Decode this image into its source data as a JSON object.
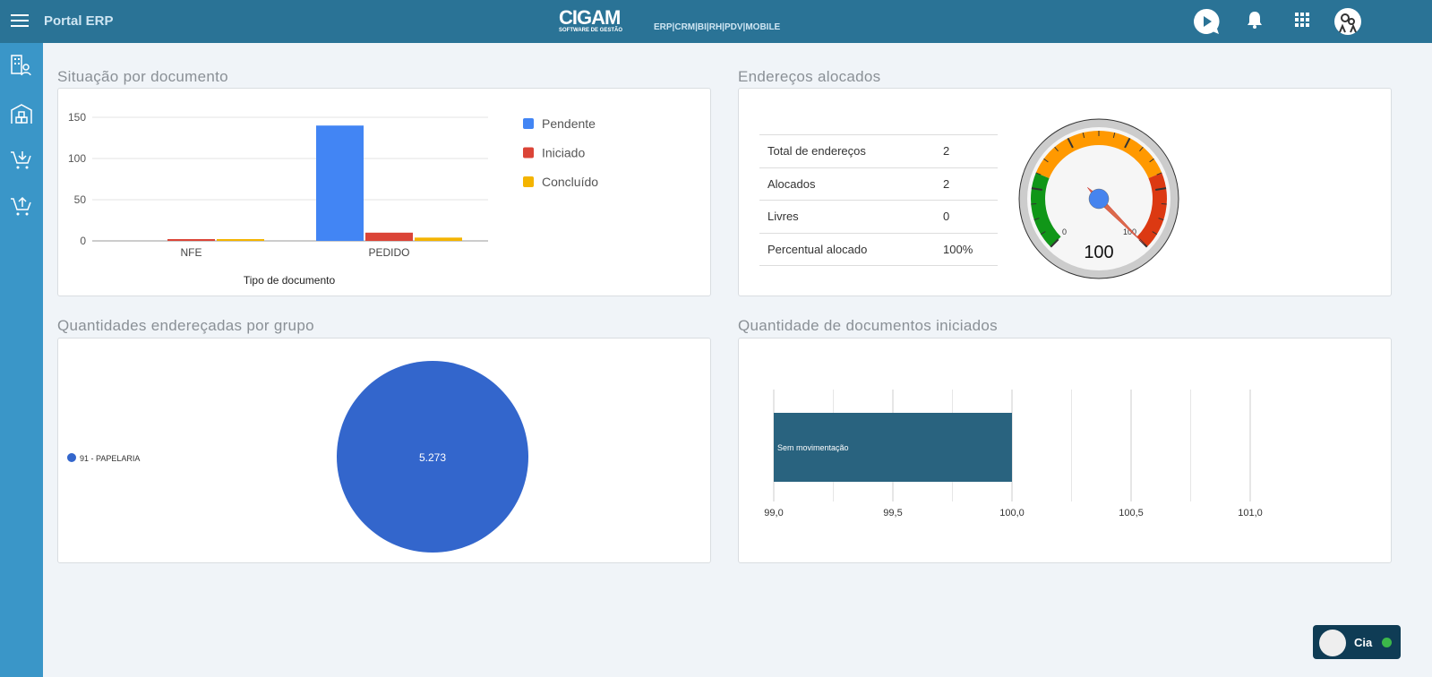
{
  "header": {
    "title": "Portal ERP",
    "logo_text": "CIGAM",
    "logo_sub": "SOFTWARE DE GESTÃO",
    "modules": "ERP|CRM|BI|RH|PDV|MOBILE"
  },
  "sidebar": {
    "items": [
      {
        "icon": "building-user-icon"
      },
      {
        "icon": "warehouse-icon"
      },
      {
        "icon": "cart-download-icon"
      },
      {
        "icon": "cart-upload-icon"
      }
    ]
  },
  "sections": {
    "s1": "Situação por documento",
    "s2": "Endereços alocados",
    "s3": "Quantidades endereçadas por grupo",
    "s4": "Quantidade de documentos iniciados"
  },
  "alloc_table": {
    "rows": [
      {
        "label": "Total de endereços",
        "value": "2"
      },
      {
        "label": "Alocados",
        "value": "2"
      },
      {
        "label": "Livres",
        "value": "0"
      },
      {
        "label": "Percentual alocado",
        "value": "100%"
      }
    ]
  },
  "chat": {
    "label": "Cia",
    "status_color": "#3cb84a"
  },
  "chart_data": [
    {
      "type": "bar",
      "categories": [
        "NFE",
        "PEDIDO"
      ],
      "series": [
        {
          "name": "Pendente",
          "color": "#4285f4",
          "values": [
            0,
            140
          ]
        },
        {
          "name": "Iniciado",
          "color": "#db4437",
          "values": [
            2,
            10
          ]
        },
        {
          "name": "Concluído",
          "color": "#f4b400",
          "values": [
            2,
            4
          ]
        }
      ],
      "xlabel": "Tipo de documento",
      "ylabel": "",
      "ylim": [
        0,
        150
      ],
      "yticks": [
        "0",
        "50",
        "100",
        "150"
      ],
      "grid": true,
      "legend": "right"
    },
    {
      "type": "gauge",
      "value": 100,
      "min": 0,
      "max": 100,
      "min_label": "0",
      "max_label": "100",
      "value_label": "100",
      "bands": [
        {
          "from": 0,
          "to": 25,
          "color": "#109618"
        },
        {
          "from": 25,
          "to": 75,
          "color": "#ff9900"
        },
        {
          "from": 75,
          "to": 100,
          "color": "#dc3912"
        }
      ]
    },
    {
      "type": "pie",
      "slices": [
        {
          "label": "91 - PAPELARIA",
          "value": 5273,
          "value_label": "5.273",
          "color": "#3366cc"
        }
      ],
      "legend": "left"
    },
    {
      "type": "bar",
      "orientation": "horizontal",
      "categories": [
        "Sem movimentação"
      ],
      "values": [
        100
      ],
      "color": "#29637f",
      "xlim": [
        99,
        101
      ],
      "xticks": [
        "99,0",
        "99,5",
        "100,0",
        "100,5",
        "101,0"
      ],
      "grid": true
    }
  ]
}
